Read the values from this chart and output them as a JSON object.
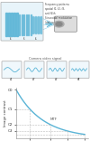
{
  "title_top": "Frequency patterns\nspatial f1, f2, f3,\nand f4th\nSinusoidal modulation\n(not constant)",
  "box_labels": [
    "f1",
    "f2",
    "f3",
    "f4"
  ],
  "xlabel": "Spatial Frequency (mm⁻¹)",
  "ylabel": "Image contrast",
  "mtf_label": "MTF",
  "y_ticks": [
    "C0",
    "C1",
    "C2",
    "C3"
  ],
  "x_ticks": [
    "f1",
    "f2",
    "f3",
    "f4"
  ],
  "curve_color": "#5ab4d6",
  "box_color": "#5ab4d6",
  "grid_color": "#cccccc",
  "bg_color": "#ffffff",
  "arrow_color": "#5ab4d6",
  "top_box_bg": "#e8f4fa",
  "dashed_color": "#aaaaaa",
  "sensor_signal_label": "Camera video signal"
}
